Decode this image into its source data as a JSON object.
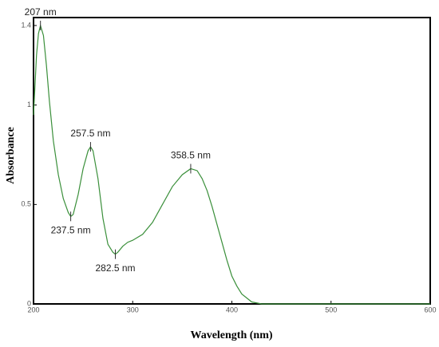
{
  "chart_data": {
    "type": "line",
    "xlabel": "Wavelength (nm)",
    "ylabel": "Absorbance",
    "xlim": [
      200,
      600
    ],
    "ylim": [
      0,
      1.44
    ],
    "xticks": [
      200,
      300,
      400,
      500,
      600
    ],
    "yticks": [
      0,
      0.5,
      1,
      1.4
    ],
    "series": [
      {
        "color": "#3a8f3a",
        "x": [
          200,
          203,
          205,
          207,
          210,
          213,
          216,
          220,
          225,
          230,
          235,
          237.5,
          240,
          245,
          250,
          255,
          257.5,
          260,
          265,
          270,
          275,
          280,
          282.5,
          285,
          290,
          295,
          300,
          310,
          320,
          330,
          340,
          350,
          358.5,
          365,
          370,
          375,
          380,
          385,
          390,
          395,
          400,
          405,
          410,
          420,
          430,
          450,
          500,
          550,
          600
        ],
        "values": [
          0.95,
          1.25,
          1.36,
          1.4,
          1.35,
          1.2,
          1.02,
          0.82,
          0.65,
          0.53,
          0.46,
          0.44,
          0.45,
          0.55,
          0.68,
          0.77,
          0.79,
          0.77,
          0.63,
          0.43,
          0.3,
          0.26,
          0.25,
          0.26,
          0.29,
          0.31,
          0.32,
          0.35,
          0.41,
          0.5,
          0.59,
          0.65,
          0.68,
          0.67,
          0.63,
          0.57,
          0.49,
          0.4,
          0.31,
          0.22,
          0.14,
          0.09,
          0.05,
          0.01,
          0,
          0,
          0,
          0,
          0
        ]
      }
    ],
    "annotations": [
      {
        "label": "207 nm",
        "x": 207,
        "y": 1.4
      },
      {
        "label": "237.5 nm",
        "x": 237.5,
        "y": 0.44
      },
      {
        "label": "257.5 nm",
        "x": 257.5,
        "y": 0.79
      },
      {
        "label": "282.5 nm",
        "x": 282.5,
        "y": 0.25
      },
      {
        "label": "358.5 nm",
        "x": 358.5,
        "y": 0.68
      }
    ]
  }
}
